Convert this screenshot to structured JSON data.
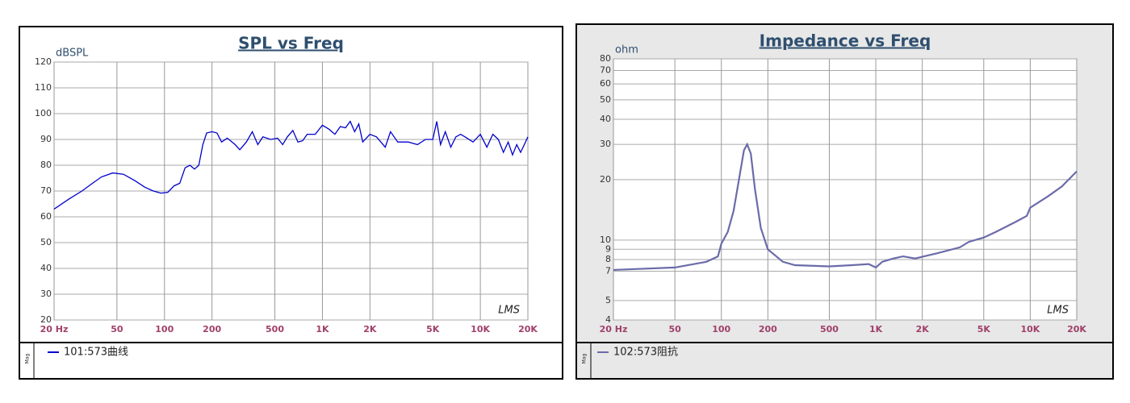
{
  "chart_data": [
    {
      "type": "line",
      "title": "SPL vs Freq",
      "y_label": "dBSPL",
      "watermark": "LMS",
      "side_label": "Mag",
      "x_log": true,
      "y_log": false,
      "grid": true,
      "xlim": [
        20,
        20000
      ],
      "ylim": [
        20,
        120
      ],
      "xticks": [
        {
          "value": 20,
          "label": "20 Hz"
        },
        50,
        100,
        200,
        500,
        {
          "value": 1000,
          "label": "1K"
        },
        {
          "value": 2000,
          "label": "2K"
        },
        {
          "value": 5000,
          "label": "5K"
        },
        {
          "value": 10000,
          "label": "10K"
        },
        {
          "value": 20000,
          "label": "20K"
        }
      ],
      "yticks": [
        20,
        30,
        40,
        50,
        60,
        70,
        80,
        90,
        100,
        110,
        120
      ],
      "x": [
        20,
        25,
        30,
        35,
        40,
        47,
        55,
        65,
        75,
        85,
        95,
        105,
        115,
        125,
        135,
        145,
        155,
        165,
        175,
        185,
        200,
        215,
        230,
        250,
        280,
        300,
        330,
        360,
        390,
        420,
        470,
        520,
        560,
        600,
        650,
        700,
        750,
        800,
        900,
        1000,
        1100,
        1200,
        1300,
        1400,
        1500,
        1600,
        1700,
        1800,
        2000,
        2200,
        2500,
        2700,
        3000,
        3500,
        4000,
        4500,
        5000,
        5300,
        5600,
        6000,
        6500,
        7000,
        7500,
        8000,
        9000,
        10000,
        11000,
        12000,
        13000,
        14000,
        15000,
        16000,
        17000,
        18000,
        19000,
        20000
      ],
      "series": [
        {
          "name": "101:573曲线",
          "color": "#0000cc",
          "values": [
            63,
            67,
            70,
            73,
            75.5,
            77,
            76.5,
            74,
            71.5,
            70,
            69.2,
            69.5,
            72,
            73,
            79,
            80,
            78.5,
            80,
            88,
            92.5,
            93,
            92.5,
            89,
            90.5,
            88,
            86,
            89,
            93,
            88,
            91,
            90,
            90.5,
            88,
            91,
            93.5,
            89,
            89.5,
            92,
            92,
            95.5,
            94,
            92,
            95,
            94.5,
            97,
            93,
            96,
            89,
            92,
            91,
            87,
            93,
            89,
            89,
            88,
            90,
            90,
            97,
            88,
            93,
            87,
            91,
            92,
            91,
            89,
            92,
            87,
            92,
            90,
            85,
            89,
            84,
            88,
            85,
            88,
            91
          ]
        }
      ]
    },
    {
      "type": "line",
      "title": "Impedance vs Freq",
      "y_label": "ohm",
      "watermark": "LMS",
      "side_label": "Mag",
      "x_log": true,
      "y_log": true,
      "grid": true,
      "xlim": [
        20,
        20000
      ],
      "ylim": [
        4,
        80
      ],
      "xticks": [
        {
          "value": 20,
          "label": "20 Hz"
        },
        50,
        100,
        200,
        500,
        {
          "value": 1000,
          "label": "1K"
        },
        {
          "value": 2000,
          "label": "2K"
        },
        {
          "value": 5000,
          "label": "5K"
        },
        {
          "value": 10000,
          "label": "10K"
        },
        {
          "value": 20000,
          "label": "20K"
        }
      ],
      "yticks": [
        4,
        5,
        7,
        8,
        9,
        10,
        20,
        30,
        40,
        50,
        60,
        70,
        80
      ],
      "x": [
        20,
        50,
        80,
        95,
        100,
        110,
        120,
        130,
        140,
        147,
        155,
        165,
        180,
        200,
        250,
        300,
        500,
        700,
        900,
        1000,
        1100,
        1300,
        1500,
        1800,
        2500,
        3500,
        4000,
        5000,
        6000,
        8000,
        9500,
        10000,
        13000,
        16000,
        20000
      ],
      "series": [
        {
          "name": "102:573阻抗",
          "color": "#6b6baa",
          "values": [
            7.1,
            7.3,
            7.8,
            8.3,
            9.6,
            11,
            14,
            20,
            28,
            30,
            27,
            18,
            11.5,
            9,
            7.8,
            7.5,
            7.4,
            7.5,
            7.6,
            7.3,
            7.8,
            8.1,
            8.3,
            8.1,
            8.6,
            9.2,
            9.8,
            10.3,
            11,
            12.3,
            13.2,
            14.5,
            16.5,
            18.5,
            22
          ]
        }
      ]
    }
  ]
}
